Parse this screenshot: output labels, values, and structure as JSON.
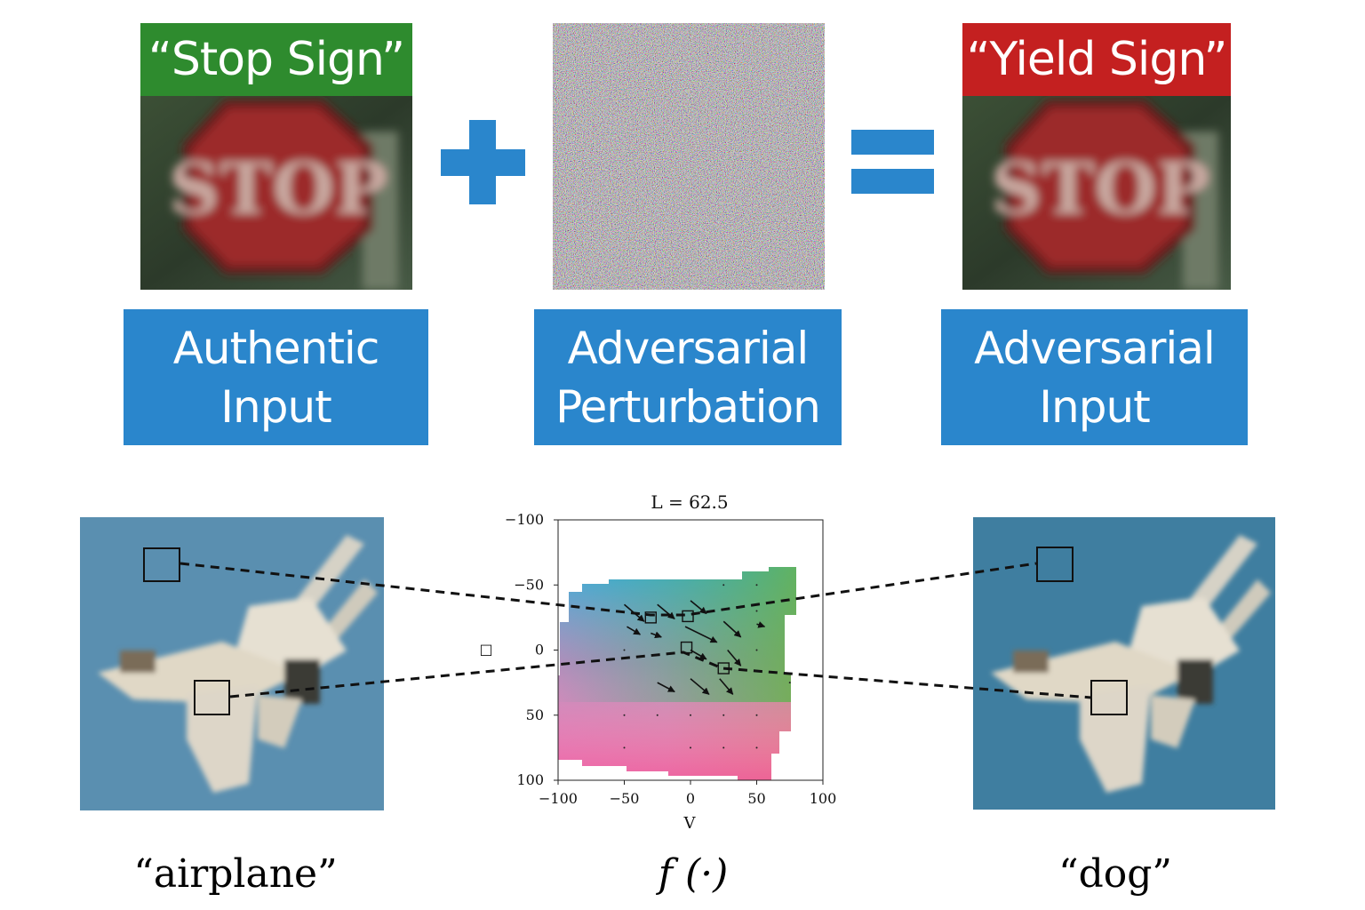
{
  "top_row": {
    "left_tile": {
      "banner": "“Stop Sign”",
      "banner_color": "#2e8b2e",
      "sign_text": "STOP"
    },
    "right_tile": {
      "banner": "“Yield Sign”",
      "banner_color": "#c42020",
      "sign_text": "STOP"
    },
    "operators": {
      "plus": "plus-sign",
      "equals": "equals-sign"
    },
    "boxes": [
      {
        "line1": "Authentic",
        "line2": "Input"
      },
      {
        "line1": "Adversarial",
        "line2": "Perturbation"
      },
      {
        "line1": "Adversarial",
        "line2": "Input"
      }
    ],
    "accent_color": "#2a86cc"
  },
  "bottom_row": {
    "left_caption": "“airplane”",
    "right_caption": "“dog”",
    "function_label": "f (·)",
    "side_marker": "□",
    "chart_data": {
      "type": "vector-field",
      "title": "L = 62.5",
      "xlabel": "V",
      "ylabel": "",
      "xlim": [
        -100,
        100
      ],
      "ylim": [
        -100,
        100
      ],
      "y_axis_inverted": true,
      "xticks": [
        "−100",
        "−50",
        "0",
        "50",
        "100"
      ],
      "yticks": [
        "−100",
        "−50",
        "0",
        "50",
        "100"
      ],
      "highlighted_points": [
        {
          "x": -30,
          "y": -25
        },
        {
          "x": -2,
          "y": -26
        },
        {
          "x": -3,
          "y": -2
        },
        {
          "x": 25,
          "y": 14
        }
      ]
    }
  }
}
